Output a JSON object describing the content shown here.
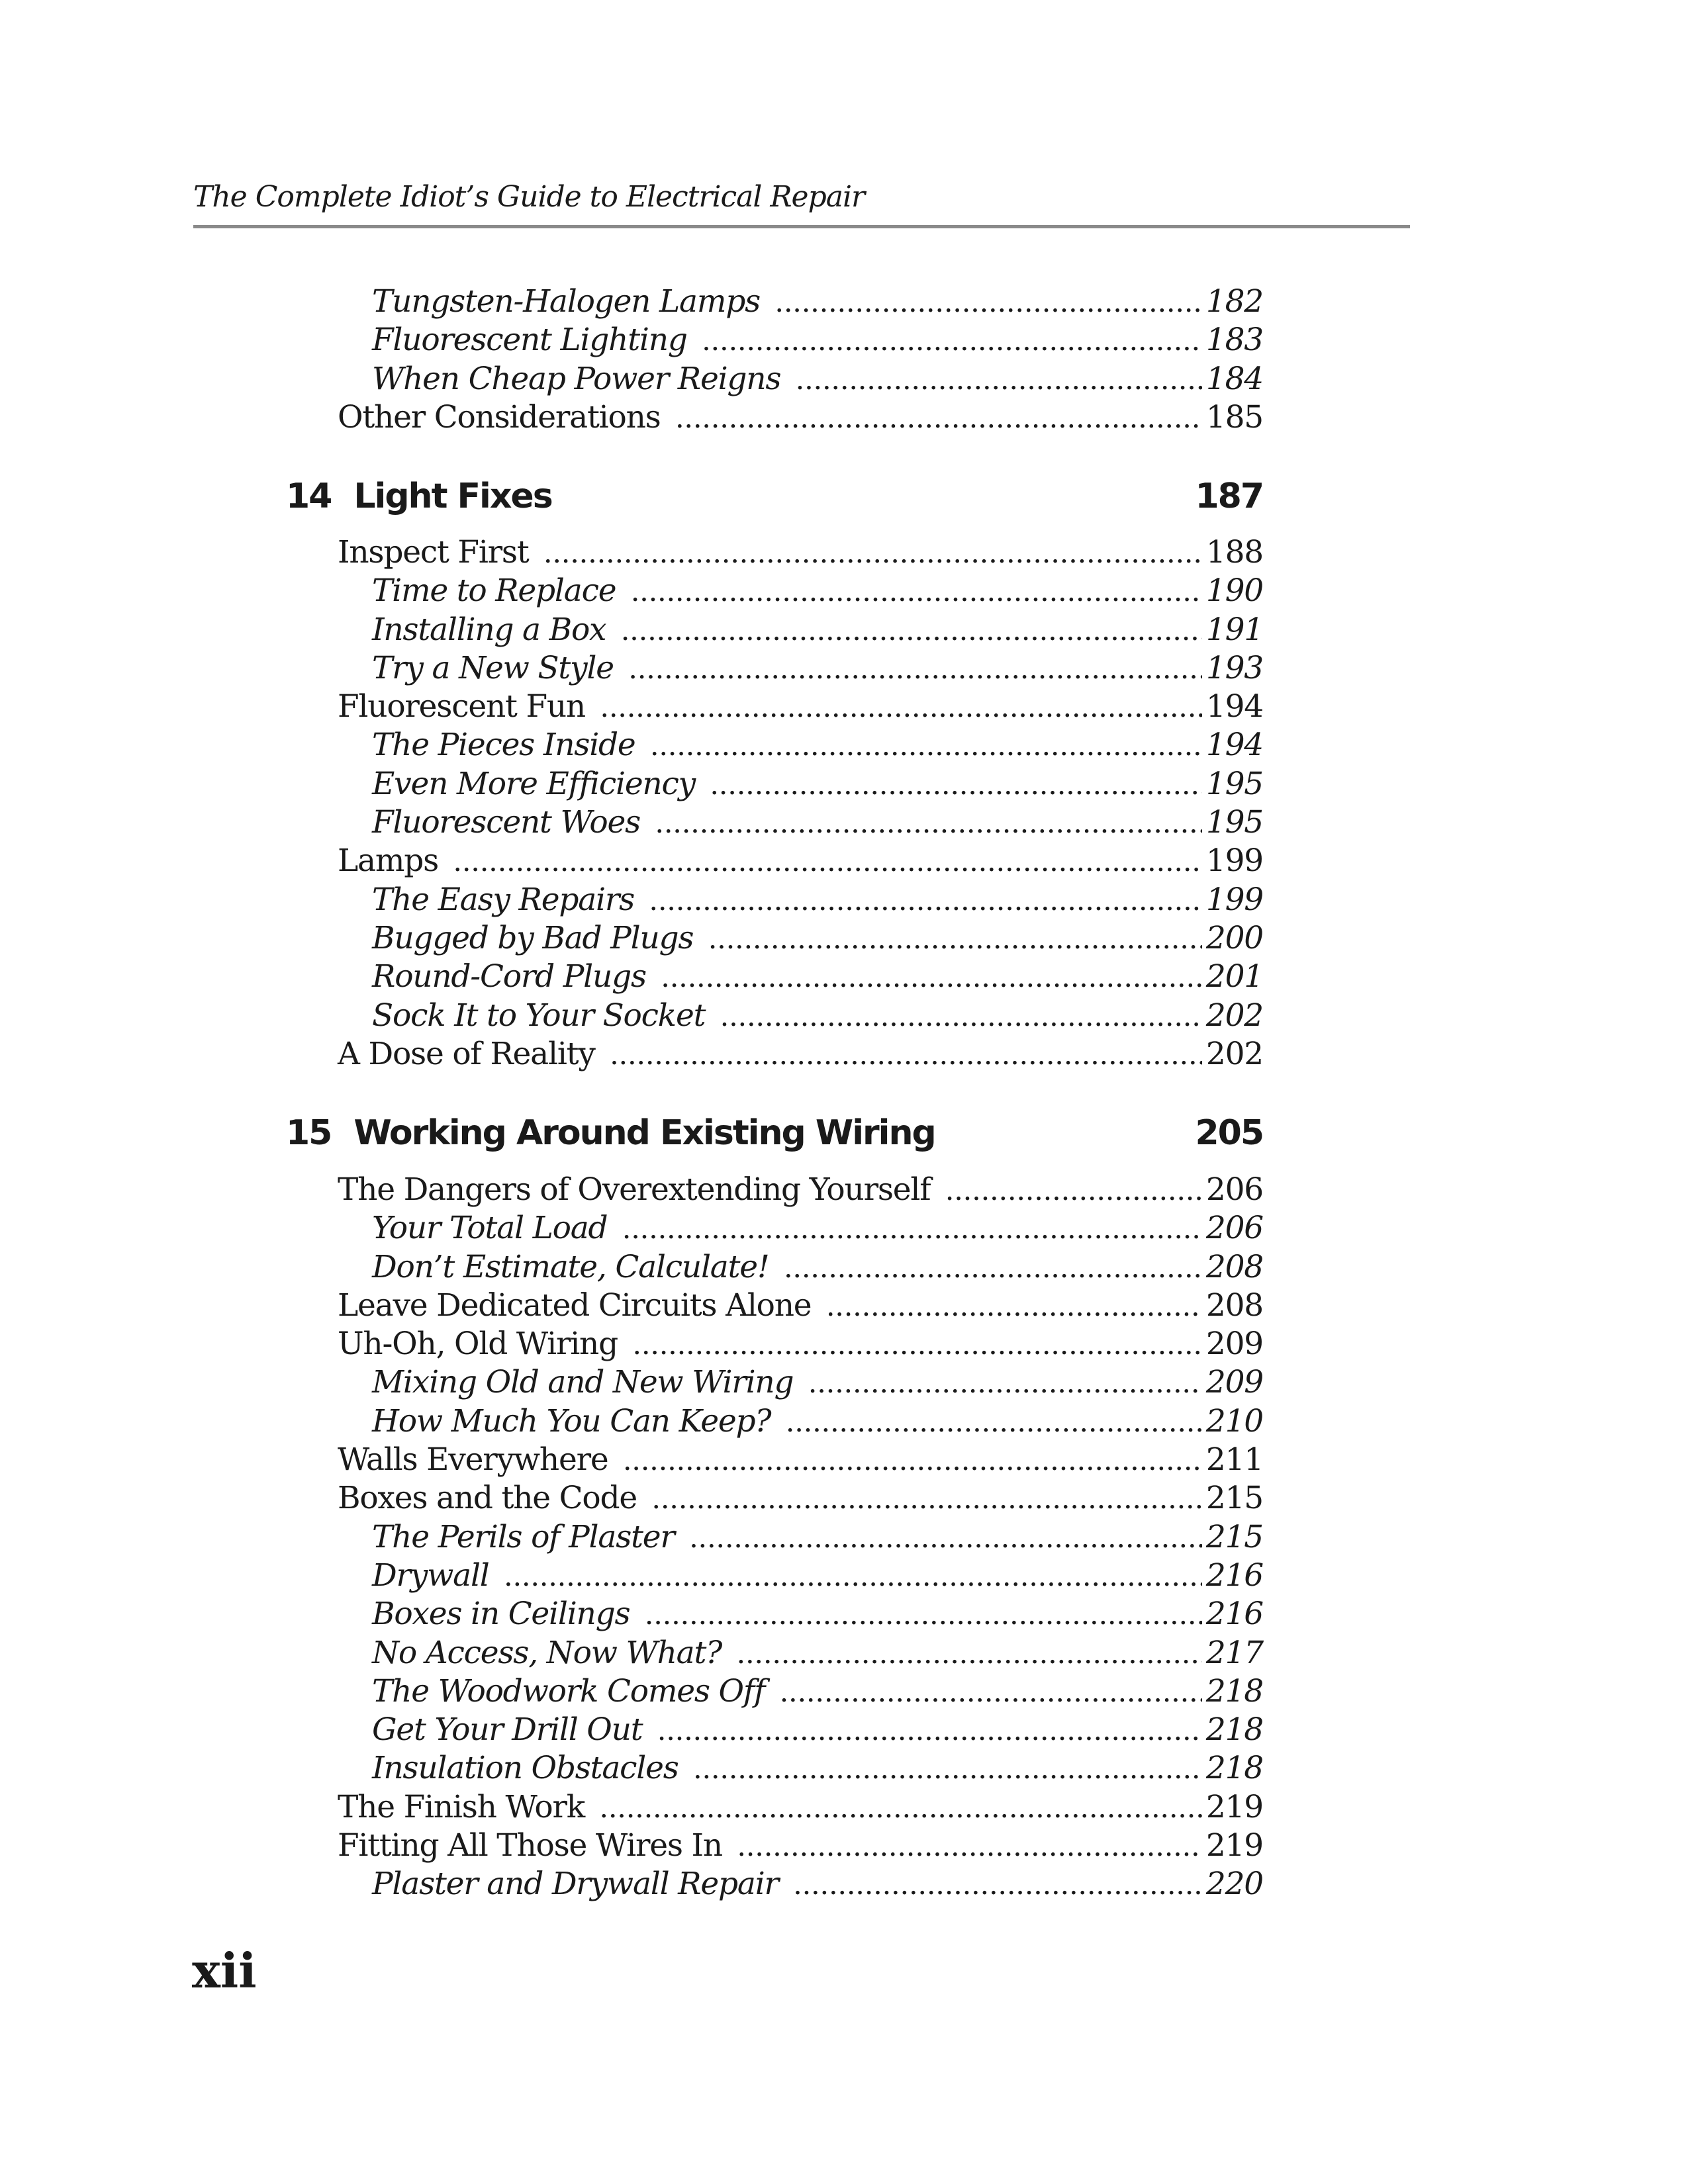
{
  "header": {
    "running_title": "The Complete Idiot’s Guide to Electrical Repair"
  },
  "block_top": [
    {
      "title": "Tungsten-Halogen Lamps",
      "page": "182",
      "level": "sub"
    },
    {
      "title": "Fluorescent Lighting",
      "page": "183",
      "level": "sub"
    },
    {
      "title": "When Cheap Power Reigns",
      "page": "184",
      "level": "sub"
    },
    {
      "title": "Other Considerations",
      "page": "185",
      "level": "main"
    }
  ],
  "chapters": [
    {
      "number": "14",
      "title": "Light Fixes",
      "page": "187",
      "entries": [
        {
          "title": "Inspect First",
          "page": "188",
          "level": "main"
        },
        {
          "title": "Time to Replace",
          "page": "190",
          "level": "sub"
        },
        {
          "title": "Installing a Box",
          "page": "191",
          "level": "sub"
        },
        {
          "title": "Try a New Style",
          "page": "193",
          "level": "sub"
        },
        {
          "title": "Fluorescent Fun",
          "page": "194",
          "level": "main"
        },
        {
          "title": "The Pieces Inside",
          "page": "194",
          "level": "sub"
        },
        {
          "title": "Even More Efficiency",
          "page": "195",
          "level": "sub"
        },
        {
          "title": "Fluorescent Woes",
          "page": "195",
          "level": "sub"
        },
        {
          "title": "Lamps",
          "page": "199",
          "level": "main"
        },
        {
          "title": "The Easy Repairs",
          "page": "199",
          "level": "sub"
        },
        {
          "title": "Bugged by Bad Plugs",
          "page": "200",
          "level": "sub"
        },
        {
          "title": "Round-Cord Plugs",
          "page": "201",
          "level": "sub"
        },
        {
          "title": "Sock It to Your Socket",
          "page": "202",
          "level": "sub"
        },
        {
          "title": "A Dose of Reality",
          "page": "202",
          "level": "main"
        }
      ]
    },
    {
      "number": "15",
      "title": "Working Around Existing Wiring",
      "page": "205",
      "entries": [
        {
          "title": "The Dangers of Overextending Yourself",
          "page": "206",
          "level": "main"
        },
        {
          "title": "Your Total Load",
          "page": "206",
          "level": "sub"
        },
        {
          "title": "Don’t Estimate, Calculate!",
          "page": "208",
          "level": "sub"
        },
        {
          "title": "Leave Dedicated Circuits Alone",
          "page": "208",
          "level": "main"
        },
        {
          "title": "Uh-Oh, Old Wiring",
          "page": "209",
          "level": "main"
        },
        {
          "title": "Mixing Old and New Wiring",
          "page": "209",
          "level": "sub"
        },
        {
          "title": "How Much You Can Keep?",
          "page": "210",
          "level": "sub"
        },
        {
          "title": "Walls Everywhere",
          "page": "211",
          "level": "main"
        },
        {
          "title": "Boxes and the Code",
          "page": "215",
          "level": "main"
        },
        {
          "title": "The Perils of Plaster",
          "page": "215",
          "level": "sub"
        },
        {
          "title": "Drywall",
          "page": "216",
          "level": "sub"
        },
        {
          "title": "Boxes in Ceilings",
          "page": "216",
          "level": "sub"
        },
        {
          "title": "No Access, Now What?",
          "page": "217",
          "level": "sub"
        },
        {
          "title": "The Woodwork Comes Off",
          "page": "218",
          "level": "sub"
        },
        {
          "title": "Get Your Drill Out",
          "page": "218",
          "level": "sub"
        },
        {
          "title": "Insulation Obstacles",
          "page": "218",
          "level": "sub"
        },
        {
          "title": "The Finish Work",
          "page": "219",
          "level": "main"
        },
        {
          "title": "Fitting All Those Wires In",
          "page": "219",
          "level": "main"
        },
        {
          "title": "Plaster and Drywall Repair",
          "page": "220",
          "level": "sub"
        }
      ]
    }
  ],
  "folio": "xii"
}
